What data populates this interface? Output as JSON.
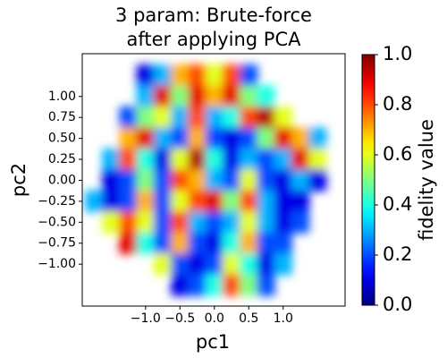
{
  "chart_data": {
    "type": "heatmap",
    "title": [
      "3 param: Brute-force",
      "after applying PCA"
    ],
    "x_label": "pc1",
    "y_label": "pc2",
    "colorbar_label": "fidelity value",
    "colormap": "jet",
    "xlim": [
      -1.92,
      1.9
    ],
    "ylim": [
      -1.5,
      1.51
    ],
    "clim": [
      0,
      1
    ],
    "xticks": [
      {
        "value": -1,
        "label": "−1.0"
      },
      {
        "value": -0.5,
        "label": "−0.5"
      },
      {
        "value": 0,
        "label": "0.0"
      },
      {
        "value": 0.5,
        "label": "0.5"
      },
      {
        "value": 1,
        "label": "1.0"
      }
    ],
    "yticks": [
      {
        "value": 1,
        "label": "1.00"
      },
      {
        "value": 0.75,
        "label": "0.75"
      },
      {
        "value": 0.5,
        "label": "0.50"
      },
      {
        "value": 0.25,
        "label": "0.25"
      },
      {
        "value": 0,
        "label": "0.00"
      },
      {
        "value": -0.25,
        "label": "−0.25"
      },
      {
        "value": -0.5,
        "label": "−0.50"
      },
      {
        "value": -0.75,
        "label": "−0.75"
      },
      {
        "value": -1,
        "label": "−1.00"
      }
    ],
    "cticks": [
      {
        "value": 0,
        "label": "0.0"
      },
      {
        "value": 0.2,
        "label": "0.2"
      },
      {
        "value": 0.4,
        "label": "0.4"
      },
      {
        "value": 0.6,
        "label": "0.6"
      },
      {
        "value": 0.8,
        "label": "0.8"
      },
      {
        "value": 1,
        "label": "1.0"
      }
    ],
    "x": [
      -1.75,
      -1.5,
      -1.25,
      -1,
      -0.75,
      -0.5,
      -0.25,
      0,
      0.25,
      0.5,
      0.75,
      1,
      1.25,
      1.5,
      1.75
    ],
    "y": [
      1.25,
      1,
      0.75,
      0.5,
      0.25,
      0,
      -0.25,
      -0.5,
      -0.75,
      -1,
      -1.25
    ],
    "z": [
      [
        null,
        null,
        null,
        0.1,
        0.3,
        0.7,
        0.8,
        0.6,
        0.8,
        0.2,
        null,
        null,
        null,
        null,
        null
      ],
      [
        null,
        null,
        null,
        0.3,
        0.9,
        0.5,
        0.9,
        0.7,
        0.9,
        0.5,
        0.4,
        null,
        null,
        null,
        null
      ],
      [
        null,
        null,
        0.2,
        0.5,
        0.6,
        0.3,
        0.8,
        0.3,
        0.4,
        0.8,
        0.95,
        0.6,
        null,
        null,
        null
      ],
      [
        null,
        null,
        0.7,
        0.9,
        0.3,
        0.2,
        0.7,
        0.2,
        0.1,
        0.2,
        0.5,
        0.9,
        0.7,
        0.3,
        null
      ],
      [
        null,
        0.3,
        0.8,
        0.4,
        0.1,
        0.6,
        0.95,
        0.4,
        0.1,
        0.3,
        0.2,
        0.3,
        0.9,
        0.6,
        null
      ],
      [
        null,
        0.1,
        0.2,
        0.5,
        0.2,
        0.8,
        0.7,
        0.3,
        0.2,
        0.6,
        0.2,
        0.1,
        0.3,
        0.1,
        null
      ],
      [
        0.3,
        0.1,
        0.2,
        0.7,
        0.2,
        0.6,
        0.8,
        0.9,
        0.5,
        0.8,
        0.3,
        0.1,
        0.1,
        null,
        null
      ],
      [
        null,
        0.6,
        0.8,
        0.6,
        0.2,
        0.8,
        0.3,
        0.2,
        0.3,
        0.6,
        0.3,
        0.1,
        0.2,
        null,
        null
      ],
      [
        null,
        null,
        0.9,
        0.4,
        0.2,
        0.7,
        0.2,
        0.1,
        0.4,
        0.7,
        0.2,
        0.2,
        null,
        null,
        null
      ],
      [
        null,
        null,
        null,
        null,
        0.6,
        0.2,
        0.1,
        0.2,
        0.6,
        0.4,
        0.1,
        0.3,
        null,
        null,
        null
      ],
      [
        null,
        null,
        null,
        null,
        null,
        0.1,
        0.2,
        0.4,
        0.8,
        0.5,
        0.2,
        null,
        null,
        null,
        null
      ]
    ]
  }
}
